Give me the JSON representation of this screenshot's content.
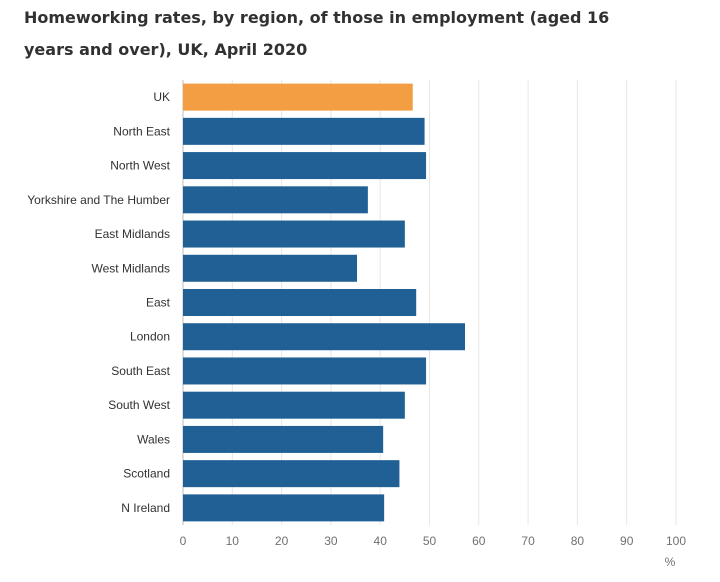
{
  "chart_data": {
    "type": "bar",
    "orientation": "horizontal",
    "title": "Homeworking rates, by region, of those in employment (aged 16 years and over), UK, April 2020",
    "categories": [
      "UK",
      "North East",
      "North West",
      "Yorkshire and The Humber",
      "East Midlands",
      "West Midlands",
      "East",
      "London",
      "South East",
      "South West",
      "Wales",
      "Scotland",
      "N Ireland"
    ],
    "values": [
      46.6,
      49.0,
      49.3,
      37.5,
      45.0,
      35.3,
      47.3,
      57.2,
      49.3,
      45.0,
      40.6,
      43.9,
      40.8
    ],
    "highlight_category": "UK",
    "xlabel": "%",
    "xlim": [
      0,
      100
    ],
    "xticks": [
      "0",
      "10",
      "20",
      "30",
      "40",
      "50",
      "60",
      "70",
      "80",
      "90",
      "100"
    ],
    "grid": true,
    "colors": {
      "highlight": "#f39e42",
      "bar": "#206095",
      "grid": "#e6e6e6",
      "axis": "#bdbdbd"
    }
  }
}
